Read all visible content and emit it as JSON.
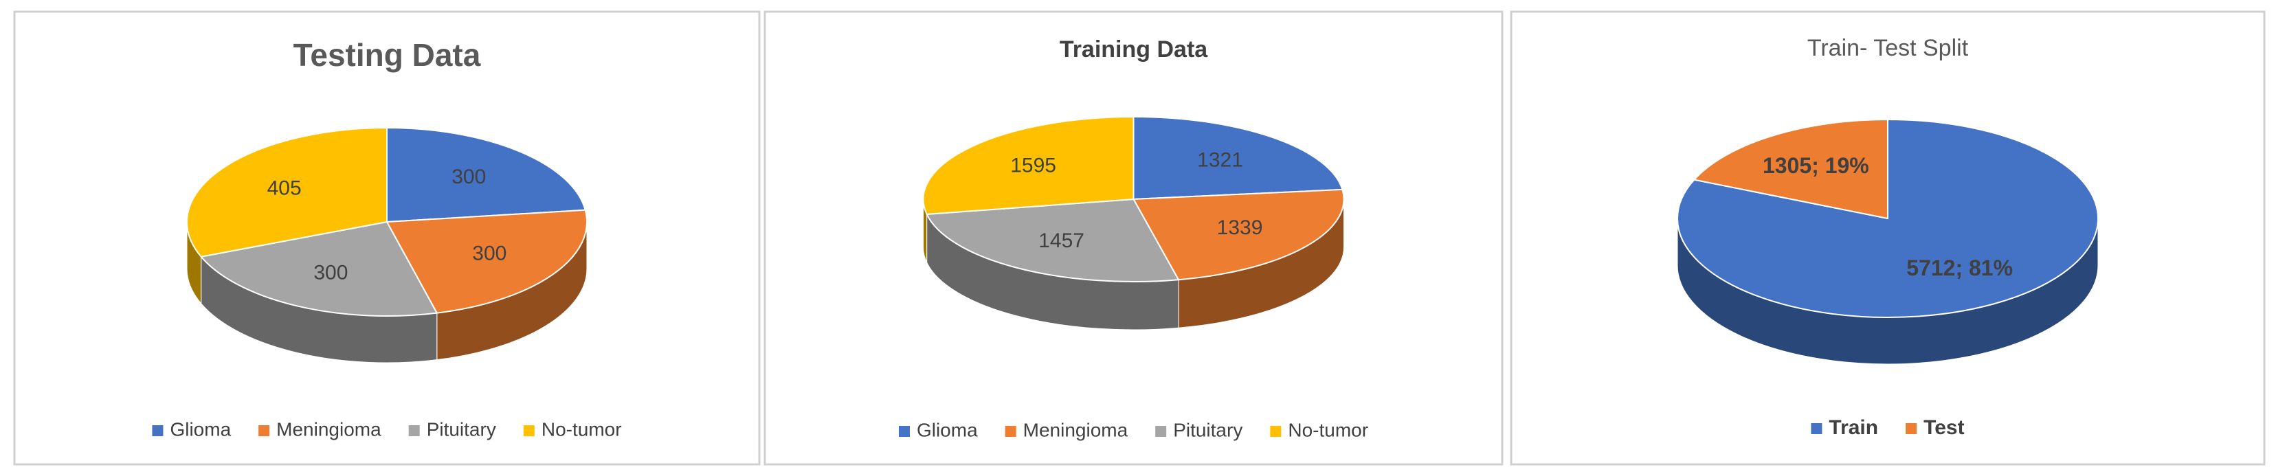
{
  "chart_data": [
    {
      "type": "pie",
      "title": "Testing Data",
      "categories": [
        "Glioma",
        "Meningioma",
        "Pituitary",
        "No-tumor"
      ],
      "values": [
        300,
        300,
        300,
        405
      ],
      "colors": [
        "#4472c4",
        "#ed7d31",
        "#a5a5a5",
        "#ffc000"
      ]
    },
    {
      "type": "pie",
      "title": "Training Data",
      "categories": [
        "Glioma",
        "Meningioma",
        "Pituitary",
        "No-tumor"
      ],
      "values": [
        1321,
        1339,
        1457,
        1595
      ],
      "colors": [
        "#4472c4",
        "#ed7d31",
        "#a5a5a5",
        "#ffc000"
      ]
    },
    {
      "type": "pie",
      "title": "Train- Test  Split",
      "categories": [
        "Train",
        "Test"
      ],
      "values": [
        5712,
        1305
      ],
      "value_labels": [
        "5712; 81%",
        "1305; 19%"
      ],
      "colors": [
        "#4472c4",
        "#ed7d31"
      ]
    }
  ]
}
